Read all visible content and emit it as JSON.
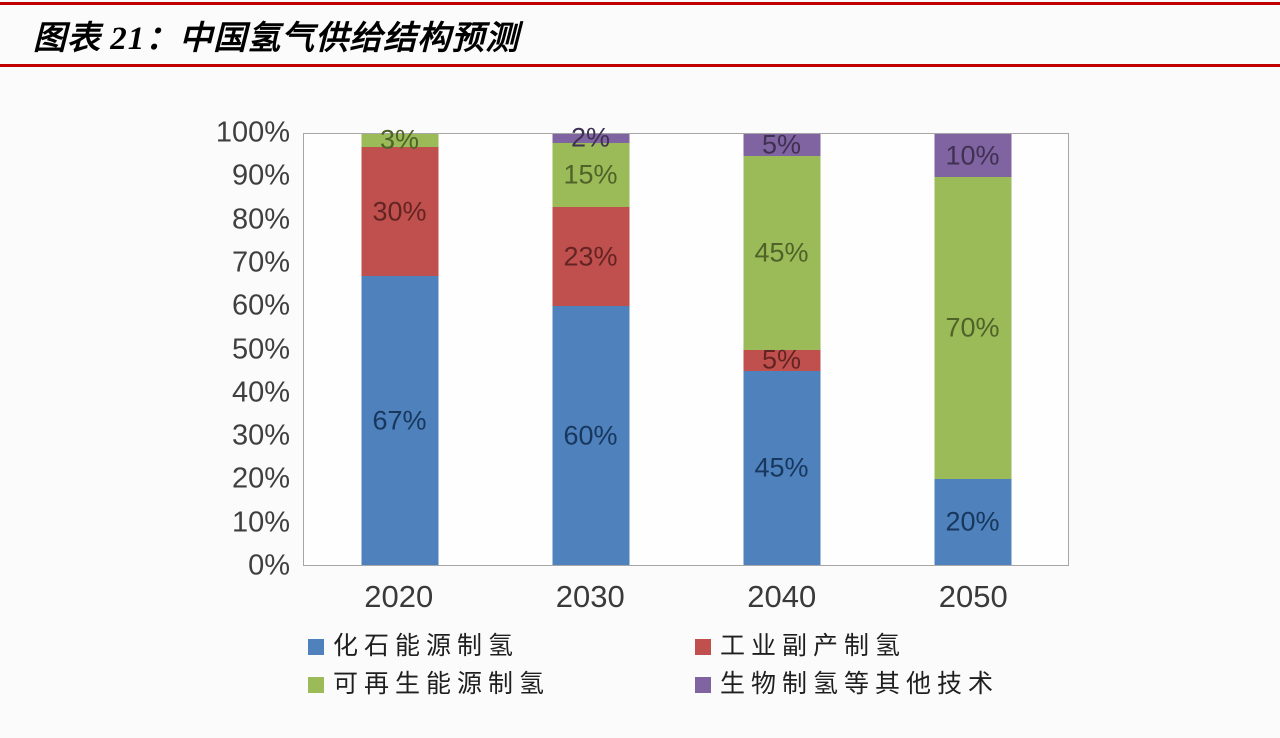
{
  "header": {
    "title": "图表 21：中国氢气供给结构预测",
    "rule_color": "#c00000"
  },
  "chart_data": {
    "type": "bar",
    "stacked": true,
    "title": "中国氢气供给结构预测",
    "categories": [
      "2020",
      "2030",
      "2040",
      "2050"
    ],
    "series": [
      {
        "name": "化石能源制氢",
        "color": "#4f81bd",
        "label_color": "#17375d",
        "values": [
          67,
          60,
          45,
          20
        ]
      },
      {
        "name": "工业副产制氢",
        "color": "#c0504d",
        "label_color": "#632423",
        "values": [
          30,
          23,
          5,
          0
        ]
      },
      {
        "name": "可再生能源制氢",
        "color": "#9bbb59",
        "label_color": "#4f6228",
        "values": [
          3,
          15,
          45,
          70
        ]
      },
      {
        "name": "生物制氢等其他技术",
        "color": "#8064a2",
        "label_color": "#3f3151",
        "values": [
          0,
          2,
          5,
          10
        ]
      }
    ],
    "value_suffix": "%",
    "y_axis": {
      "min": 0,
      "max": 100,
      "ticks": [
        "0%",
        "10%",
        "20%",
        "30%",
        "40%",
        "50%",
        "60%",
        "70%",
        "80%",
        "90%",
        "100%"
      ]
    },
    "grid": false,
    "legend_position": "bottom",
    "plot_border_color": "#a6a6a6"
  }
}
